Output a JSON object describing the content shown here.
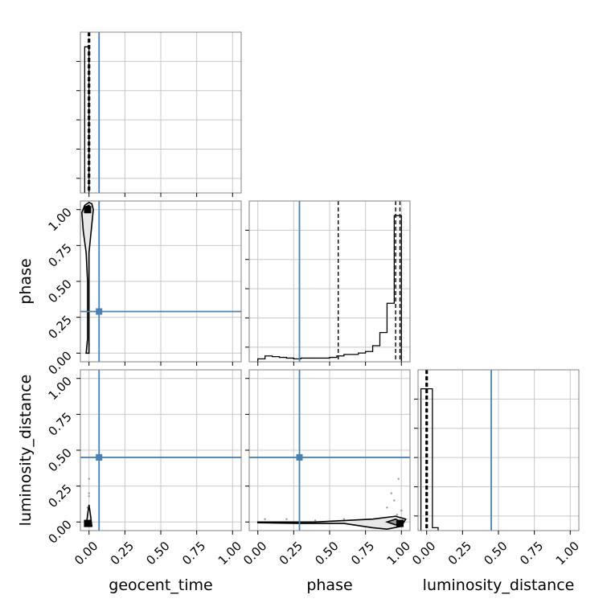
{
  "chart_data": {
    "type": "corner",
    "parameters": [
      "geocent_time",
      "phase",
      "luminosity_distance"
    ],
    "xlabels": [
      "geocent_time",
      "phase",
      "luminosity_distance"
    ],
    "ylabels": [
      "",
      "phase",
      "luminosity_distance"
    ],
    "ticks": [
      "0.00",
      "0.25",
      "0.50",
      "0.75",
      "1.00"
    ],
    "range": [
      -0.06,
      1.06
    ],
    "grid": true,
    "truths": {
      "geocent_time": 0.07,
      "phase": 0.29,
      "luminosity_distance": 0.45
    },
    "marginals": [
      {
        "parameter": "geocent_time",
        "bins": [
          [
            -0.03,
            0.0,
            1.0
          ]
        ],
        "ymax": 1.1,
        "quantiles": [
          -0.005,
          0.0,
          0.005
        ]
      },
      {
        "parameter": "phase",
        "bins": [
          [
            0.0,
            0.05,
            0.02
          ],
          [
            0.05,
            0.1,
            0.04
          ],
          [
            0.1,
            0.15,
            0.035
          ],
          [
            0.15,
            0.2,
            0.03
          ],
          [
            0.2,
            0.25,
            0.025
          ],
          [
            0.25,
            0.3,
            0.02
          ],
          [
            0.3,
            0.35,
            0.025
          ],
          [
            0.35,
            0.4,
            0.025
          ],
          [
            0.4,
            0.45,
            0.025
          ],
          [
            0.45,
            0.5,
            0.025
          ],
          [
            0.5,
            0.55,
            0.03
          ],
          [
            0.55,
            0.6,
            0.04
          ],
          [
            0.6,
            0.65,
            0.05
          ],
          [
            0.65,
            0.7,
            0.05
          ],
          [
            0.7,
            0.75,
            0.06
          ],
          [
            0.75,
            0.8,
            0.07
          ],
          [
            0.8,
            0.85,
            0.11
          ],
          [
            0.85,
            0.9,
            0.2
          ],
          [
            0.9,
            0.95,
            0.4
          ],
          [
            0.95,
            1.0,
            1.0
          ]
        ],
        "ymax": 1.1,
        "quantiles": [
          0.56,
          0.96,
          0.99
        ]
      },
      {
        "parameter": "luminosity_distance",
        "bins": [
          [
            -0.04,
            0.0,
            0.97
          ],
          [
            0.0,
            0.04,
            0.97
          ],
          [
            0.04,
            0.08,
            0.02
          ]
        ],
        "ymax": 1.1,
        "quantiles": [
          -0.005,
          0.0,
          0.005
        ]
      }
    ],
    "contours": [
      {
        "x": "geocent_time",
        "y": "phase",
        "outer": [
          [
            -0.02,
            0.0
          ],
          [
            0.0,
            0.0
          ],
          [
            0.0,
            0.3
          ],
          [
            0.0,
            0.5
          ],
          [
            0.0,
            0.7
          ],
          [
            0.02,
            0.9
          ],
          [
            0.03,
            1.0
          ],
          [
            0.02,
            1.04
          ],
          [
            0.0,
            1.05
          ],
          [
            -0.03,
            1.03
          ],
          [
            -0.05,
            0.98
          ],
          [
            -0.04,
            0.85
          ],
          [
            -0.02,
            0.7
          ],
          [
            -0.01,
            0.5
          ],
          [
            -0.01,
            0.3
          ],
          [
            -0.01,
            0.1
          ]
        ],
        "inner": [
          [
            -0.02,
            0.98
          ],
          [
            0.0,
            0.98
          ],
          [
            0.01,
            1.0
          ],
          [
            0.0,
            1.03
          ],
          [
            -0.02,
            1.02
          ],
          [
            -0.03,
            1.0
          ]
        ],
        "core": [
          -0.01,
          1.0
        ],
        "extra_points": [
          [
            -0.01,
            0.07
          ],
          [
            -0.01,
            0.05
          ],
          [
            0.0,
            0.06
          ]
        ]
      },
      {
        "x": "geocent_time",
        "y": "luminosity_distance",
        "outer": [
          [
            -0.02,
            -0.03
          ],
          [
            0.02,
            -0.03
          ],
          [
            0.01,
            0.05
          ],
          [
            0.0,
            0.12
          ],
          [
            -0.01,
            0.05
          ]
        ],
        "inner": [],
        "core": [
          -0.01,
          -0.01
        ],
        "extra_points": [
          [
            0.0,
            0.18
          ],
          [
            0.0,
            0.2
          ],
          [
            0.0,
            0.3
          ],
          [
            -0.01,
            0.1
          ]
        ]
      },
      {
        "x": "phase",
        "y": "luminosity_distance",
        "outer": [
          [
            0.0,
            0.0
          ],
          [
            0.4,
            0.0
          ],
          [
            0.8,
            0.02
          ],
          [
            0.96,
            0.04
          ],
          [
            1.03,
            0.02
          ],
          [
            1.0,
            -0.03
          ],
          [
            0.9,
            -0.05
          ],
          [
            0.8,
            -0.04
          ],
          [
            0.6,
            -0.01
          ],
          [
            0.3,
            -0.01
          ],
          [
            0.0,
            -0.005
          ]
        ],
        "inner": [
          [
            0.9,
            0.0
          ],
          [
            0.96,
            0.02
          ],
          [
            1.0,
            0.0
          ],
          [
            0.96,
            -0.02
          ]
        ],
        "core": [
          0.99,
          -0.01
        ],
        "extra_points": [
          [
            0.05,
            0.02
          ],
          [
            0.2,
            0.02
          ],
          [
            0.4,
            0.01
          ],
          [
            0.6,
            0.02
          ],
          [
            0.9,
            0.1
          ],
          [
            0.95,
            0.15
          ],
          [
            0.98,
            0.3
          ],
          [
            1.0,
            0.08
          ],
          [
            0.97,
            0.05
          ],
          [
            0.93,
            0.2
          ]
        ]
      }
    ]
  }
}
